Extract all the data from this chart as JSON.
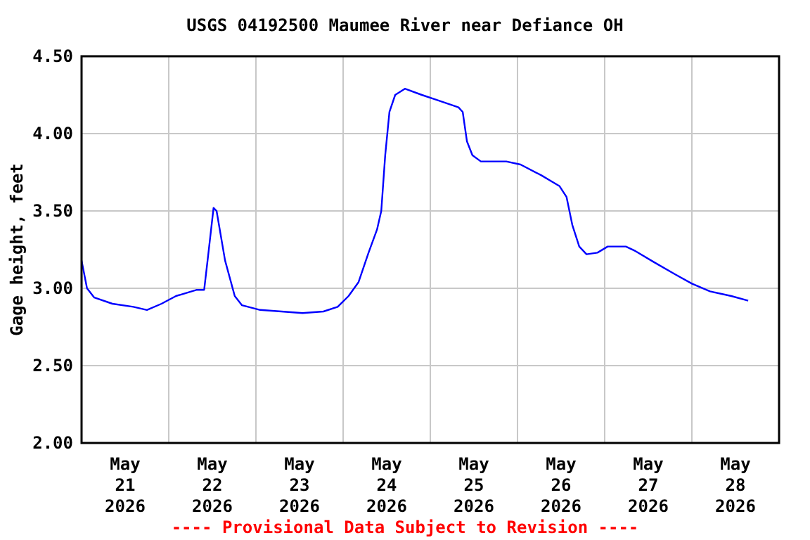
{
  "chart_data": {
    "type": "line",
    "title": "USGS 04192500 Maumee River near Defiance OH",
    "ylabel": "Gage height, feet",
    "annotations": [
      "---- Provisional Data Subject to Revision ----"
    ],
    "xlim": [
      "2026-05-21T00:00",
      "2026-05-29T00:00"
    ],
    "xticks": [
      {
        "value": "2026-05-21T00:00",
        "label": null
      },
      {
        "value": "2026-05-21T12:00",
        "label": "May 21 2026"
      },
      {
        "value": "2026-05-22T00:00",
        "label": null
      },
      {
        "value": "2026-05-22T12:00",
        "label": "May 22 2026"
      },
      {
        "value": "2026-05-23T00:00",
        "label": null
      },
      {
        "value": "2026-05-23T12:00",
        "label": "May 23 2026"
      },
      {
        "value": "2026-05-24T00:00",
        "label": null
      },
      {
        "value": "2026-05-24T12:00",
        "label": "May 24 2026"
      },
      {
        "value": "2026-05-25T00:00",
        "label": null
      },
      {
        "value": "2026-05-25T12:00",
        "label": "May 25 2026"
      },
      {
        "value": "2026-05-26T00:00",
        "label": null
      },
      {
        "value": "2026-05-26T12:00",
        "label": "May 26 2026"
      },
      {
        "value": "2026-05-27T00:00",
        "label": null
      },
      {
        "value": "2026-05-27T12:00",
        "label": "May 27 2026"
      },
      {
        "value": "2026-05-28T00:00",
        "label": null
      },
      {
        "value": "2026-05-28T12:00",
        "label": "May 28 2026"
      },
      {
        "value": "2026-05-29T00:00",
        "label": null
      }
    ],
    "ylim": [
      2.0,
      4.5
    ],
    "yticks": [
      {
        "value": 2.0,
        "label": "2.00"
      },
      {
        "value": 2.5,
        "label": "2.50"
      },
      {
        "value": 3.0,
        "label": "3.00"
      },
      {
        "value": 3.5,
        "label": "3.50"
      },
      {
        "value": 4.0,
        "label": "4.00"
      },
      {
        "value": 4.5,
        "label": "4.50"
      }
    ],
    "grid": true,
    "marker": "none",
    "line_style": "solid",
    "series": [
      {
        "color": "#0000ff",
        "x": [
          "2026-05-21T00:00",
          "2026-05-21T01:30",
          "2026-05-21T03:30",
          "2026-05-21T08:30",
          "2026-05-21T14:15",
          "2026-05-21T18:00",
          "2026-05-21T22:00",
          "2026-05-22T02:00",
          "2026-05-22T07:45",
          "2026-05-22T09:45",
          "2026-05-22T10:50",
          "2026-05-22T12:20",
          "2026-05-22T13:10",
          "2026-05-22T15:30",
          "2026-05-22T18:10",
          "2026-05-22T20:10",
          "2026-05-23T01:10",
          "2026-05-23T07:00",
          "2026-05-23T12:50",
          "2026-05-23T18:35",
          "2026-05-23T22:30",
          "2026-05-24T01:30",
          "2026-05-24T04:15",
          "2026-05-24T07:00",
          "2026-05-24T09:20",
          "2026-05-24T10:30",
          "2026-05-24T11:35",
          "2026-05-24T12:45",
          "2026-05-24T14:20",
          "2026-05-24T17:00",
          "2026-05-24T21:40",
          "2026-05-25T01:30",
          "2026-05-25T07:45",
          "2026-05-25T08:55",
          "2026-05-25T10:05",
          "2026-05-25T11:35",
          "2026-05-25T13:55",
          "2026-05-25T20:55",
          "2026-05-26T00:50",
          "2026-05-26T06:35",
          "2026-05-26T11:35",
          "2026-05-26T13:30",
          "2026-05-26T15:05",
          "2026-05-26T17:00",
          "2026-05-26T19:00",
          "2026-05-26T22:00",
          "2026-05-27T00:50",
          "2026-05-27T05:50",
          "2026-05-27T08:30",
          "2026-05-27T13:30",
          "2026-05-27T19:25",
          "2026-05-28T00:00",
          "2026-05-28T05:00",
          "2026-05-28T10:50",
          "2026-05-28T15:30"
        ],
        "values": [
          3.18,
          3.0,
          2.94,
          2.9,
          2.88,
          2.86,
          2.9,
          2.95,
          2.99,
          2.99,
          3.21,
          3.52,
          3.5,
          3.18,
          2.95,
          2.89,
          2.86,
          2.85,
          2.84,
          2.85,
          2.88,
          2.95,
          3.04,
          3.23,
          3.38,
          3.5,
          3.86,
          4.14,
          4.25,
          4.29,
          4.25,
          4.22,
          4.17,
          4.14,
          3.95,
          3.86,
          3.82,
          3.82,
          3.8,
          3.73,
          3.66,
          3.59,
          3.41,
          3.27,
          3.22,
          3.23,
          3.27,
          3.27,
          3.24,
          3.17,
          3.09,
          3.03,
          2.98,
          2.95,
          2.92
        ]
      }
    ]
  }
}
